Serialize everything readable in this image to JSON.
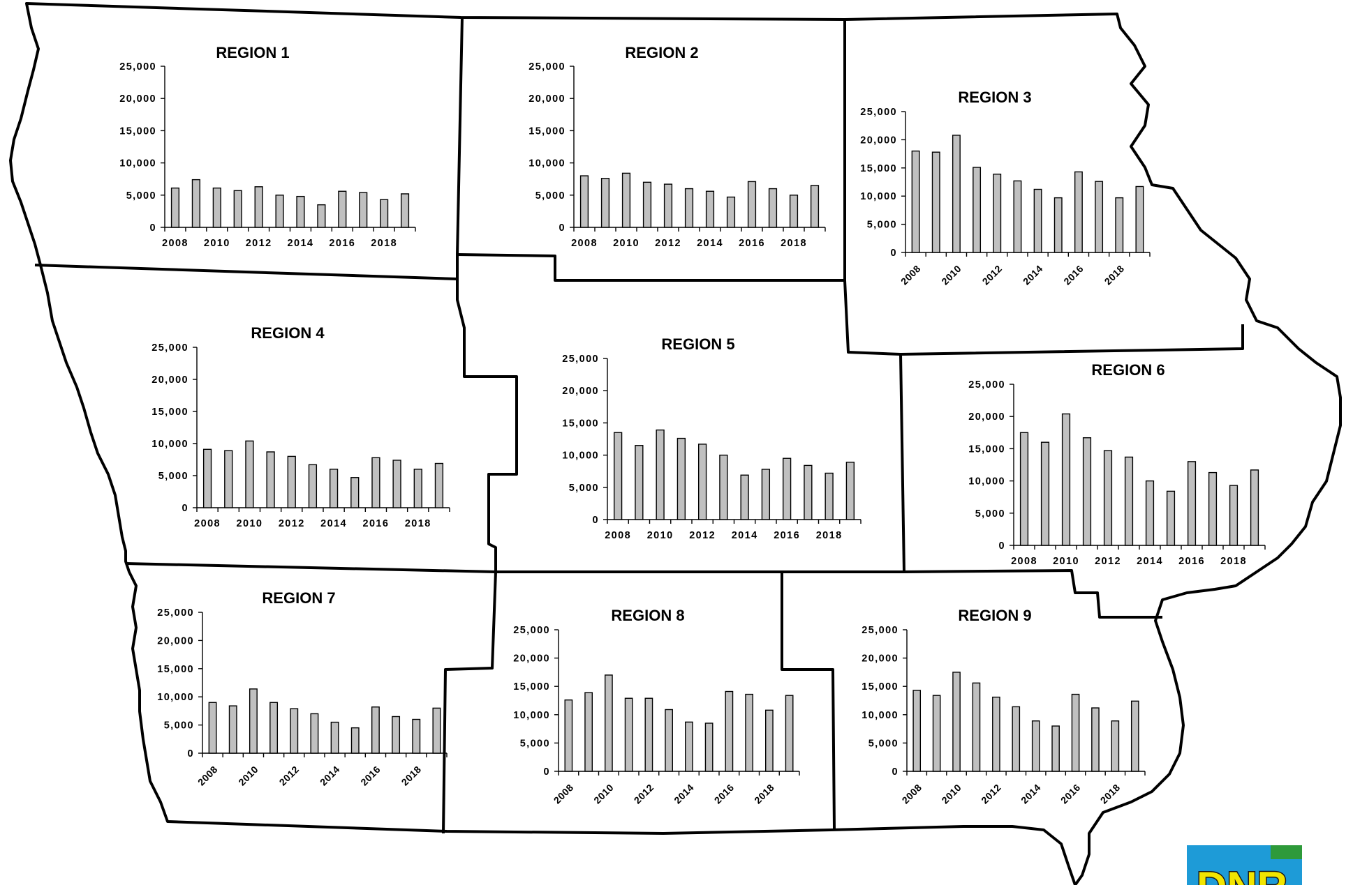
{
  "chart_data": [
    {
      "type": "bar",
      "title": "REGION 1",
      "x": [
        2008,
        2009,
        2010,
        2011,
        2012,
        2013,
        2014,
        2015,
        2016,
        2017,
        2018,
        2019
      ],
      "values": [
        6100,
        7400,
        6100,
        5700,
        6300,
        5000,
        4800,
        3500,
        5600,
        5400,
        4300,
        5200
      ],
      "ylim": [
        0,
        25000
      ],
      "yticks": [
        "25,000",
        "20,000",
        "15,000",
        "10,000",
        "5,000",
        "0"
      ],
      "xtick_labels": [
        "2008",
        "2010",
        "2012",
        "2014",
        "2016",
        "2018"
      ],
      "xtick_rotated": false
    },
    {
      "type": "bar",
      "title": "REGION 2",
      "x": [
        2008,
        2009,
        2010,
        2011,
        2012,
        2013,
        2014,
        2015,
        2016,
        2017,
        2018,
        2019
      ],
      "values": [
        8000,
        7600,
        8400,
        7000,
        6700,
        6000,
        5600,
        4700,
        7100,
        6000,
        5000,
        6500
      ],
      "ylim": [
        0,
        25000
      ],
      "yticks": [
        "25,000",
        "20,000",
        "15,000",
        "10,000",
        "5,000",
        "0"
      ],
      "xtick_labels": [
        "2008",
        "2010",
        "2012",
        "2014",
        "2016",
        "2018"
      ],
      "xtick_rotated": false
    },
    {
      "type": "bar",
      "title": "REGION 3",
      "x": [
        2008,
        2009,
        2010,
        2011,
        2012,
        2013,
        2014,
        2015,
        2016,
        2017,
        2018,
        2019
      ],
      "values": [
        18000,
        17800,
        20800,
        15100,
        13900,
        12700,
        11200,
        9700,
        14300,
        12600,
        9700,
        11700
      ],
      "ylim": [
        0,
        25000
      ],
      "yticks": [
        "25,000",
        "20,000",
        "15,000",
        "10,000",
        "5,000",
        "0"
      ],
      "xtick_labels": [
        "2008",
        "2010",
        "2012",
        "2014",
        "2016",
        "2018"
      ],
      "xtick_rotated": true
    },
    {
      "type": "bar",
      "title": "REGION 4",
      "x": [
        2008,
        2009,
        2010,
        2011,
        2012,
        2013,
        2014,
        2015,
        2016,
        2017,
        2018,
        2019
      ],
      "values": [
        9100,
        8900,
        10400,
        8700,
        8000,
        6700,
        6000,
        4700,
        7800,
        7400,
        6000,
        6900
      ],
      "ylim": [
        0,
        25000
      ],
      "yticks": [
        "25,000",
        "20,000",
        "15,000",
        "10,000",
        "5,000",
        "0"
      ],
      "xtick_labels": [
        "2008",
        "2010",
        "2012",
        "2014",
        "2016",
        "2018"
      ],
      "xtick_rotated": false
    },
    {
      "type": "bar",
      "title": "REGION 5",
      "x": [
        2008,
        2009,
        2010,
        2011,
        2012,
        2013,
        2014,
        2015,
        2016,
        2017,
        2018,
        2019
      ],
      "values": [
        13500,
        11500,
        13900,
        12600,
        11700,
        10000,
        6900,
        7800,
        9500,
        8400,
        7200,
        8900
      ],
      "ylim": [
        0,
        25000
      ],
      "yticks": [
        "25,000",
        "20,000",
        "15,000",
        "10,000",
        "5,000",
        "0"
      ],
      "xtick_labels": [
        "2008",
        "2010",
        "2012",
        "2014",
        "2016",
        "2018"
      ],
      "xtick_rotated": false
    },
    {
      "type": "bar",
      "title": "REGION 6",
      "x": [
        2008,
        2009,
        2010,
        2011,
        2012,
        2013,
        2014,
        2015,
        2016,
        2017,
        2018,
        2019
      ],
      "values": [
        17500,
        16000,
        20400,
        16700,
        14700,
        13700,
        10000,
        8400,
        13000,
        11300,
        9300,
        11700
      ],
      "ylim": [
        0,
        25000
      ],
      "yticks": [
        "25,000",
        "20,000",
        "15,000",
        "10,000",
        "5,000",
        "0"
      ],
      "xtick_labels": [
        "2008",
        "2010",
        "2012",
        "2014",
        "2016",
        "2018"
      ],
      "xtick_rotated": false
    },
    {
      "type": "bar",
      "title": "REGION 7",
      "x": [
        2008,
        2009,
        2010,
        2011,
        2012,
        2013,
        2014,
        2015,
        2016,
        2017,
        2018,
        2019
      ],
      "values": [
        9000,
        8400,
        11400,
        9000,
        7900,
        7000,
        5500,
        4500,
        8200,
        6500,
        6000,
        8000
      ],
      "ylim": [
        0,
        25000
      ],
      "yticks": [
        "25,000",
        "20,000",
        "15,000",
        "10,000",
        "5,000",
        "0"
      ],
      "xtick_labels": [
        "2008",
        "2010",
        "2012",
        "2014",
        "2016",
        "2018"
      ],
      "xtick_rotated": true
    },
    {
      "type": "bar",
      "title": "REGION 8",
      "x": [
        2008,
        2009,
        2010,
        2011,
        2012,
        2013,
        2014,
        2015,
        2016,
        2017,
        2018,
        2019
      ],
      "values": [
        12600,
        13900,
        17000,
        12900,
        12900,
        10900,
        8700,
        8500,
        14100,
        13600,
        10800,
        13400
      ],
      "ylim": [
        0,
        25000
      ],
      "yticks": [
        "25,000",
        "20,000",
        "15,000",
        "10,000",
        "5,000",
        "0"
      ],
      "xtick_labels": [
        "2008",
        "2010",
        "2012",
        "2014",
        "2016",
        "2018"
      ],
      "xtick_rotated": true
    },
    {
      "type": "bar",
      "title": "REGION 9",
      "x": [
        2008,
        2009,
        2010,
        2011,
        2012,
        2013,
        2014,
        2015,
        2016,
        2017,
        2018,
        2019
      ],
      "values": [
        14300,
        13400,
        17500,
        15600,
        13100,
        11400,
        8900,
        8000,
        13600,
        11200,
        8900,
        12400
      ],
      "ylim": [
        0,
        25000
      ],
      "yticks": [
        "25,000",
        "20,000",
        "15,000",
        "10,000",
        "5,000",
        "0"
      ],
      "xtick_labels": [
        "2008",
        "2010",
        "2012",
        "2014",
        "2016",
        "2018"
      ],
      "xtick_rotated": true
    }
  ],
  "logo": {
    "text": "DNR",
    "colors": {
      "background": "#1e9bd7",
      "letters": "#f2e500",
      "accent": "#2e9a3a"
    }
  }
}
